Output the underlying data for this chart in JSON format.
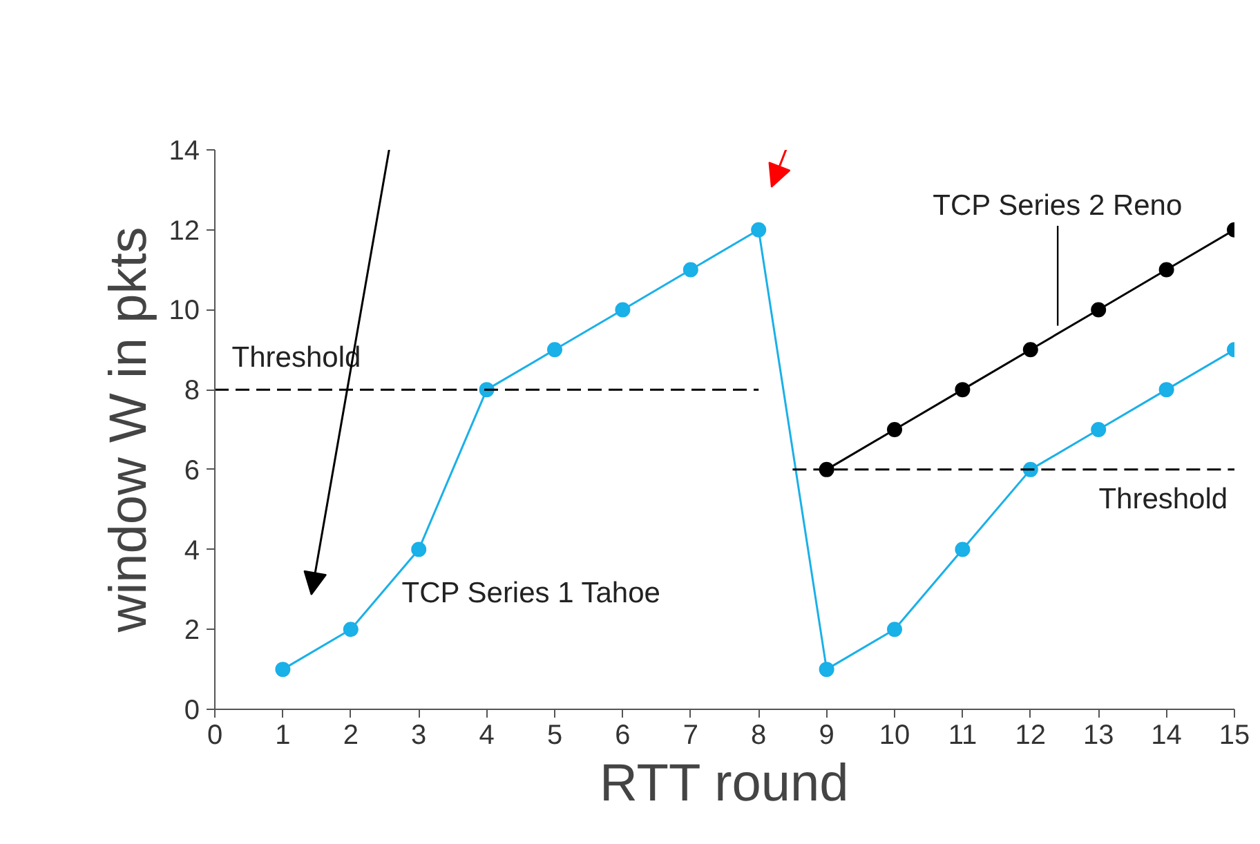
{
  "chart_data": {
    "type": "line",
    "xlabel": "RTT round",
    "ylabel": "window W in pkts",
    "xlim": [
      0,
      15
    ],
    "ylim": [
      0,
      14
    ],
    "xticks": [
      0,
      1,
      2,
      3,
      4,
      5,
      6,
      7,
      8,
      9,
      10,
      11,
      12,
      13,
      14,
      15
    ],
    "yticks": [
      0,
      2,
      4,
      6,
      8,
      10,
      12,
      14
    ],
    "grid": false,
    "marker": "circle",
    "line_style": "solid",
    "series": [
      {
        "name": "TCP Series 1 Tahoe",
        "color": "#1ab0e8",
        "x": [
          1,
          2,
          3,
          4,
          5,
          6,
          7,
          8,
          9,
          10,
          11,
          12,
          13,
          14,
          15
        ],
        "values": [
          1,
          2,
          4,
          8,
          9,
          10,
          11,
          12,
          1,
          2,
          4,
          6,
          7,
          8,
          9
        ]
      },
      {
        "name": "TCP Series 2 Reno",
        "color": "#000000",
        "x": [
          9,
          10,
          11,
          12,
          13,
          14,
          15
        ],
        "values": [
          6,
          7,
          8,
          9,
          10,
          11,
          12
        ]
      },
      {
        "name": "Threshold",
        "color": "#000000",
        "x": [
          0,
          8
        ],
        "values": [
          8,
          8
        ],
        "marker": "none",
        "line_style": "dashed"
      },
      {
        "name": "Threshold",
        "color": "#000000",
        "x": [
          8.5,
          15
        ],
        "values": [
          6,
          6
        ],
        "marker": "none",
        "line_style": "dashed"
      }
    ]
  }
}
